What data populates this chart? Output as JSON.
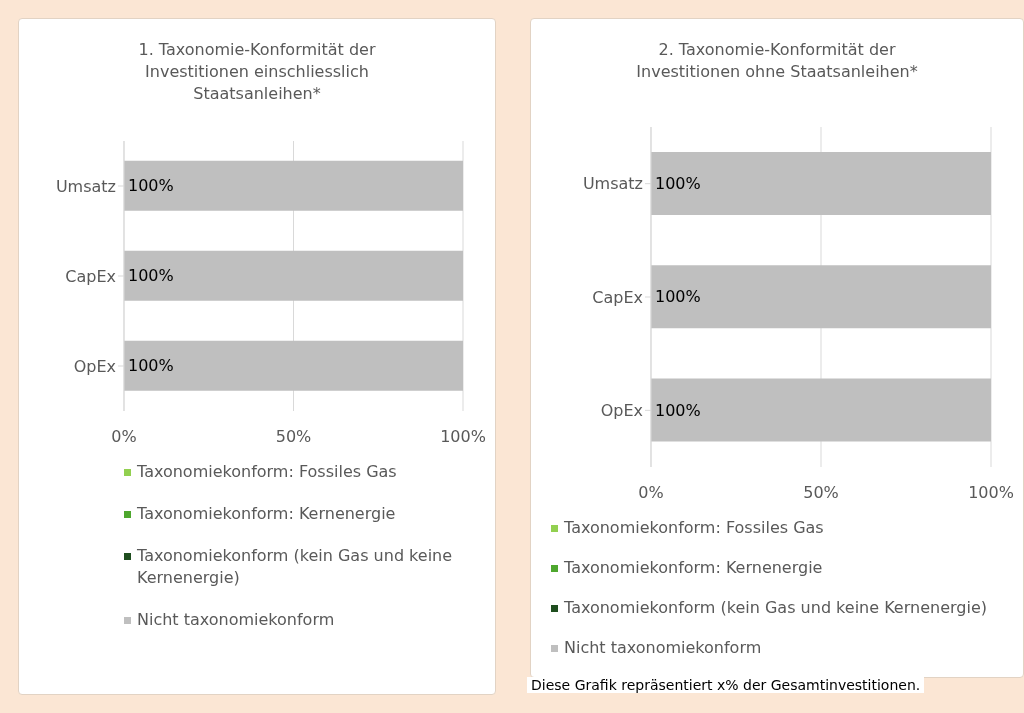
{
  "chart_data": [
    {
      "type": "bar",
      "orientation": "horizontal",
      "stacked": true,
      "title": "1. Taxonomie-Konformität der Investitionen einschliesslich Staatsanleihen*",
      "categories": [
        "Umsatz",
        "CapEx",
        "OpEx"
      ],
      "series": [
        {
          "name": "Taxonomiekonform: Fossiles Gas",
          "color": "#92d050",
          "values": [
            0,
            0,
            0
          ]
        },
        {
          "name": "Taxonomiekonform: Kernenergie",
          "color": "#4ea72e",
          "values": [
            0,
            0,
            0
          ]
        },
        {
          "name": "Taxonomiekonform (kein Gas und keine Kernenergie)",
          "color": "#1f4e1f",
          "values": [
            0,
            0,
            0
          ]
        },
        {
          "name": "Nicht taxonomiekonform",
          "color": "#bfbfbf",
          "values": [
            100,
            100,
            100
          ],
          "value_labels": [
            "100%",
            "100%",
            "100%"
          ]
        }
      ],
      "xlim": [
        0,
        100
      ],
      "xticks": [
        {
          "value": 0,
          "label": "0%"
        },
        {
          "value": 50,
          "label": "50%"
        },
        {
          "value": 100,
          "label": "100%"
        }
      ],
      "grid": "x",
      "legend": "bottom"
    },
    {
      "type": "bar",
      "orientation": "horizontal",
      "stacked": true,
      "title": "2. Taxonomie-Konformität der Investitionen ohne Staatsanleihen*",
      "categories": [
        "Umsatz",
        "CapEx",
        "OpEx"
      ],
      "series": [
        {
          "name": "Taxonomiekonform: Fossiles Gas",
          "color": "#92d050",
          "values": [
            0,
            0,
            0
          ]
        },
        {
          "name": "Taxonomiekonform: Kernenergie",
          "color": "#4ea72e",
          "values": [
            0,
            0,
            0
          ]
        },
        {
          "name": "Taxonomiekonform (kein Gas und keine Kernenergie)",
          "color": "#1f4e1f",
          "values": [
            0,
            0,
            0
          ]
        },
        {
          "name": "Nicht taxonomiekonform",
          "color": "#bfbfbf",
          "values": [
            100,
            100,
            100
          ],
          "value_labels": [
            "100%",
            "100%",
            "100%"
          ]
        }
      ],
      "xlim": [
        0,
        100
      ],
      "xticks": [
        {
          "value": 0,
          "label": "0%"
        },
        {
          "value": 50,
          "label": "50%"
        },
        {
          "value": 100,
          "label": "100%"
        }
      ],
      "grid": "x",
      "legend": "bottom",
      "annotations": [
        "Diese Grafik repräsentiert x% der Gesamtinvestitionen."
      ]
    }
  ]
}
